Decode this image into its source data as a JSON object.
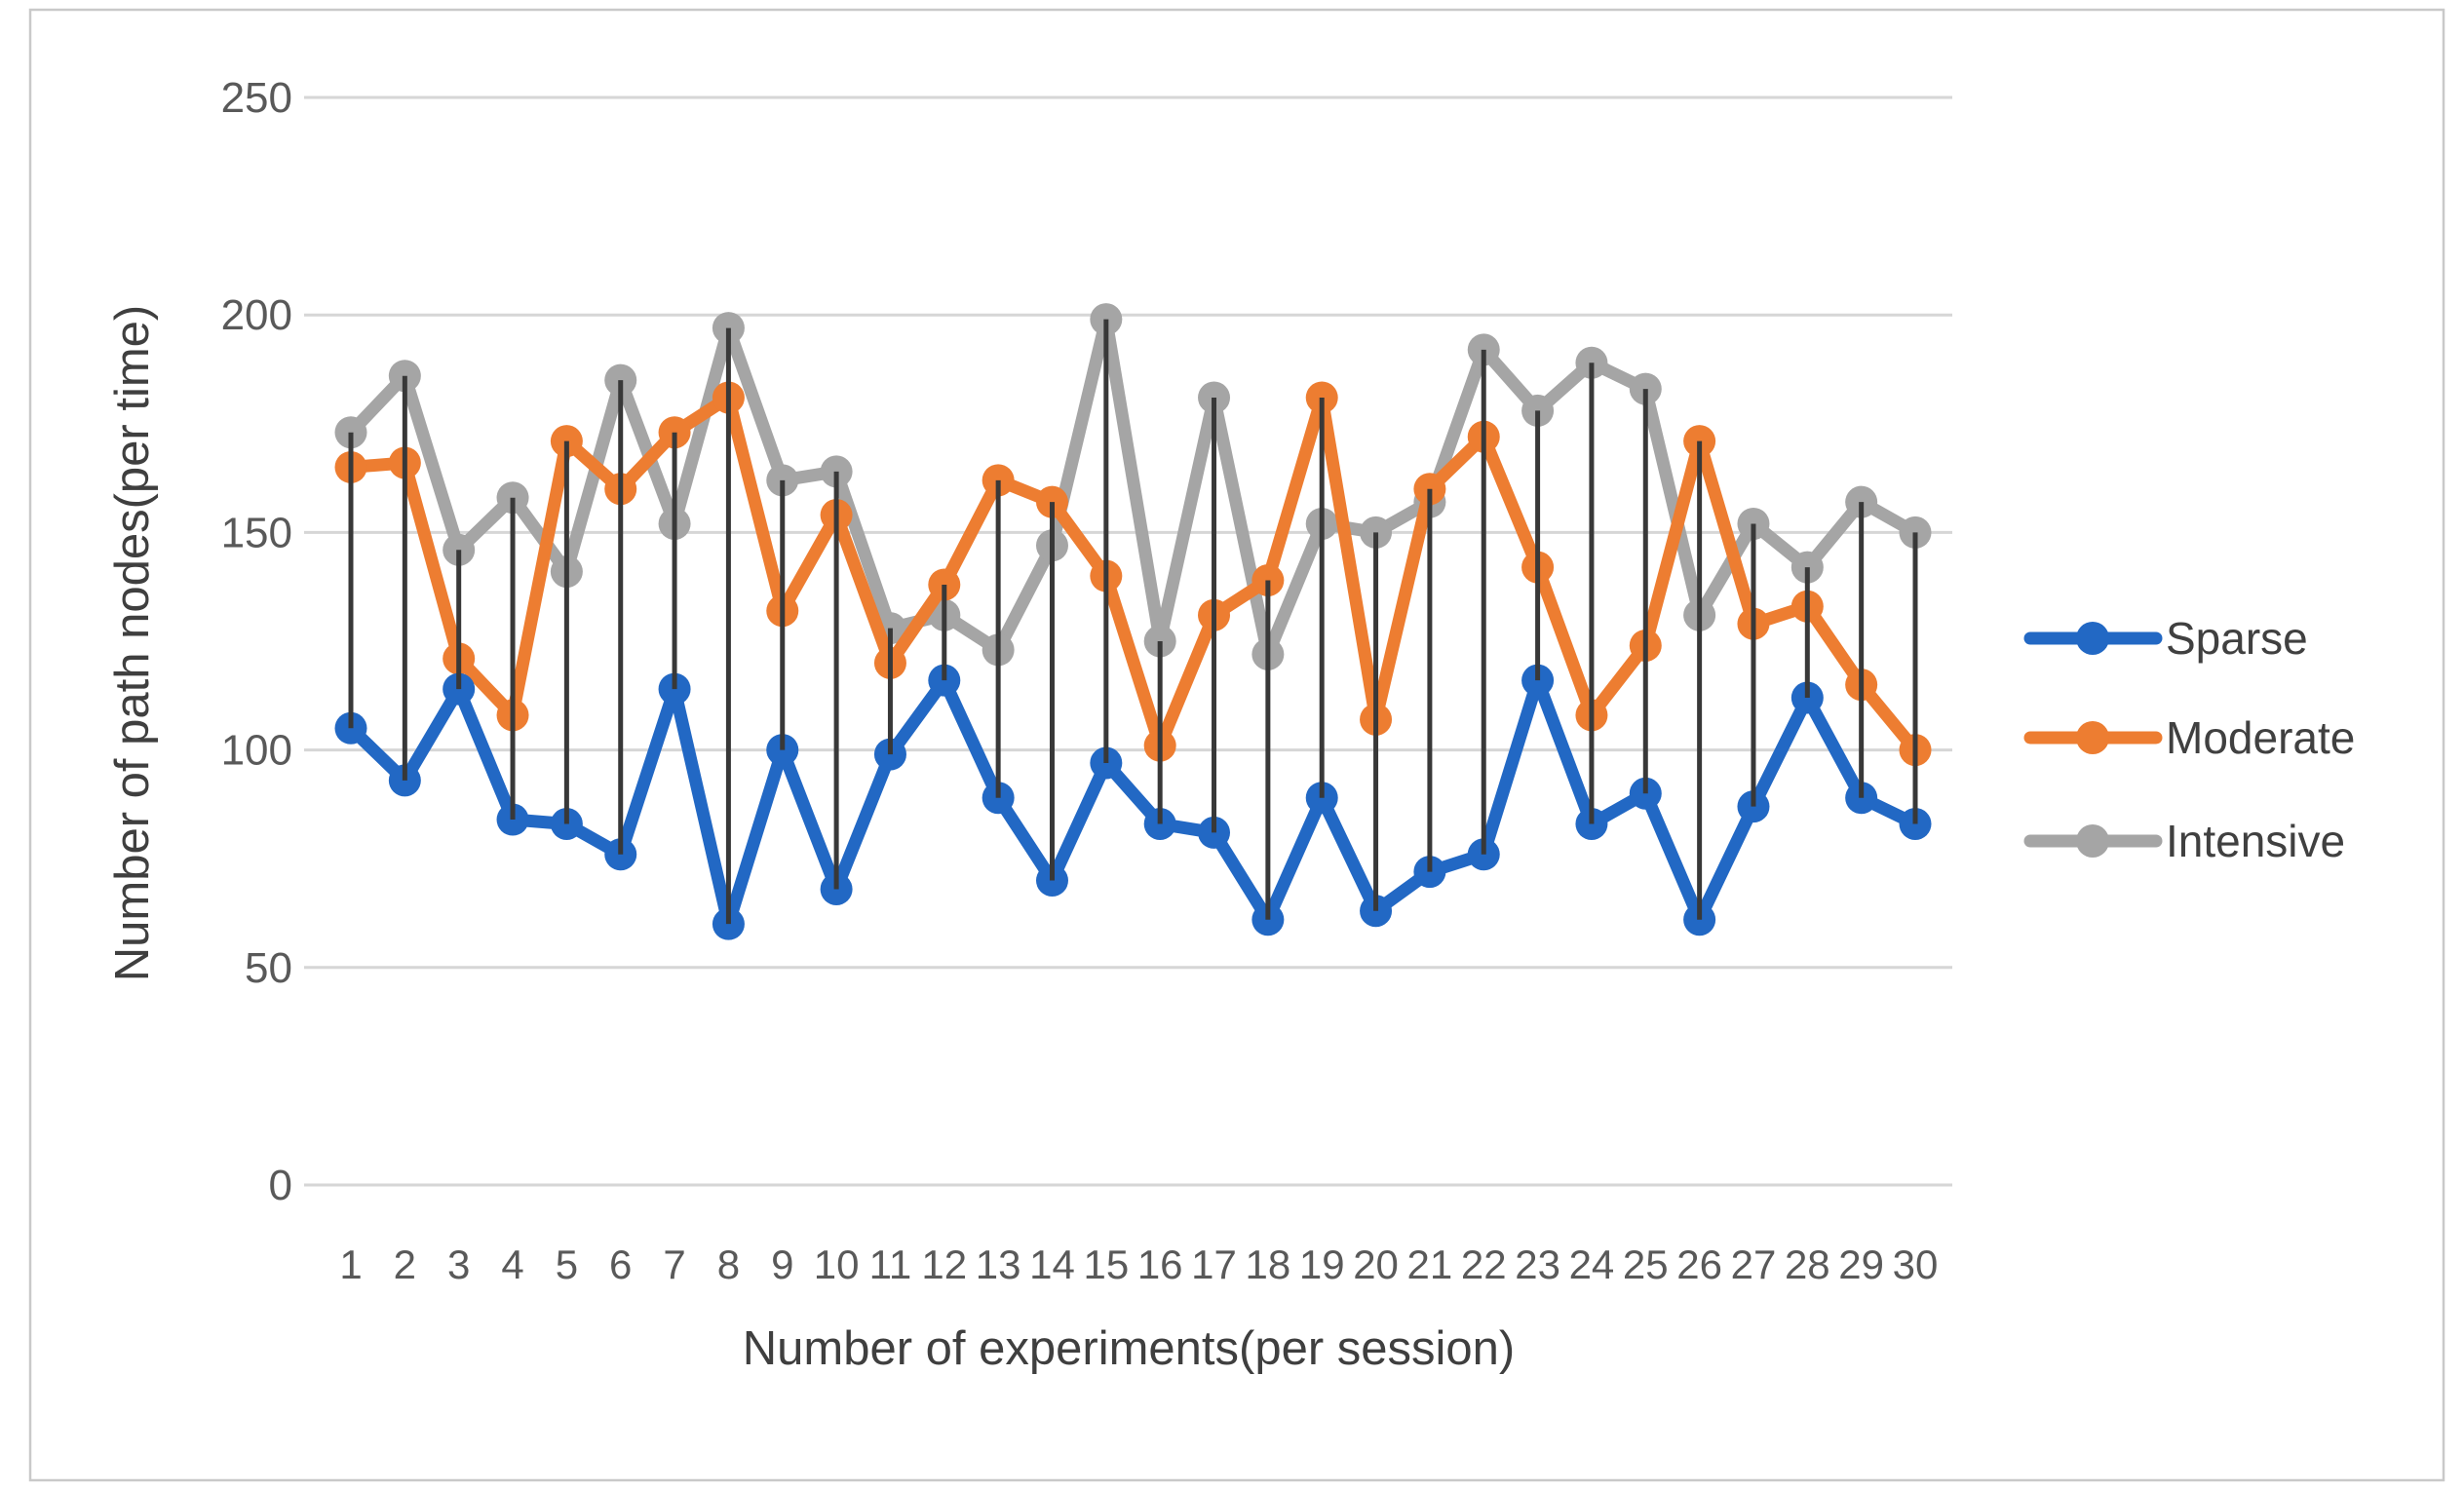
{
  "figure": {
    "background": "#FFFFFF",
    "border_color": "#C9C9C9"
  },
  "chart_data": {
    "type": "line",
    "title": "",
    "xlabel": "Number of experiments(per session)",
    "ylabel": "Number of path nodes(per time)",
    "x": [
      1,
      2,
      3,
      4,
      5,
      6,
      7,
      8,
      9,
      10,
      11,
      12,
      13,
      14,
      15,
      16,
      17,
      18,
      19,
      20,
      21,
      22,
      23,
      24,
      25,
      26,
      27,
      28,
      29,
      30
    ],
    "ylim": [
      0,
      250
    ],
    "yticks": [
      0,
      50,
      100,
      150,
      200,
      250
    ],
    "grid": "horizontal-only",
    "legend_position": "right",
    "high_low_lines": true,
    "high_low_line_color": "#383838",
    "gridline_color": "#D6D6D6",
    "tick_label_color": "#595959",
    "axis_title_color": "#3F3F3F",
    "legend_text_color": "#404040",
    "series": [
      {
        "name": "Sparse",
        "color": "#2268C4",
        "values": [
          105,
          93,
          114,
          84,
          83,
          76,
          114,
          60,
          100,
          68,
          99,
          116,
          89,
          70,
          97,
          83,
          81,
          61,
          89,
          63,
          72,
          76,
          116,
          83,
          90,
          61,
          87,
          112,
          89,
          83
        ]
      },
      {
        "name": "Moderate",
        "color": "#ED7D31",
        "values": [
          165,
          166,
          121,
          108,
          171,
          160,
          173,
          181,
          132,
          154,
          120,
          138,
          162,
          157,
          140,
          101,
          131,
          139,
          181,
          107,
          160,
          172,
          142,
          108,
          124,
          171,
          129,
          133,
          115,
          100
        ]
      },
      {
        "name": "Intensive",
        "color": "#A5A5A5",
        "values": [
          173,
          186,
          146,
          158,
          141,
          185,
          152,
          197,
          162,
          164,
          128,
          131,
          123,
          147,
          199,
          125,
          181,
          122,
          152,
          150,
          157,
          192,
          178,
          189,
          183,
          131,
          152,
          142,
          157,
          150
        ]
      }
    ]
  }
}
